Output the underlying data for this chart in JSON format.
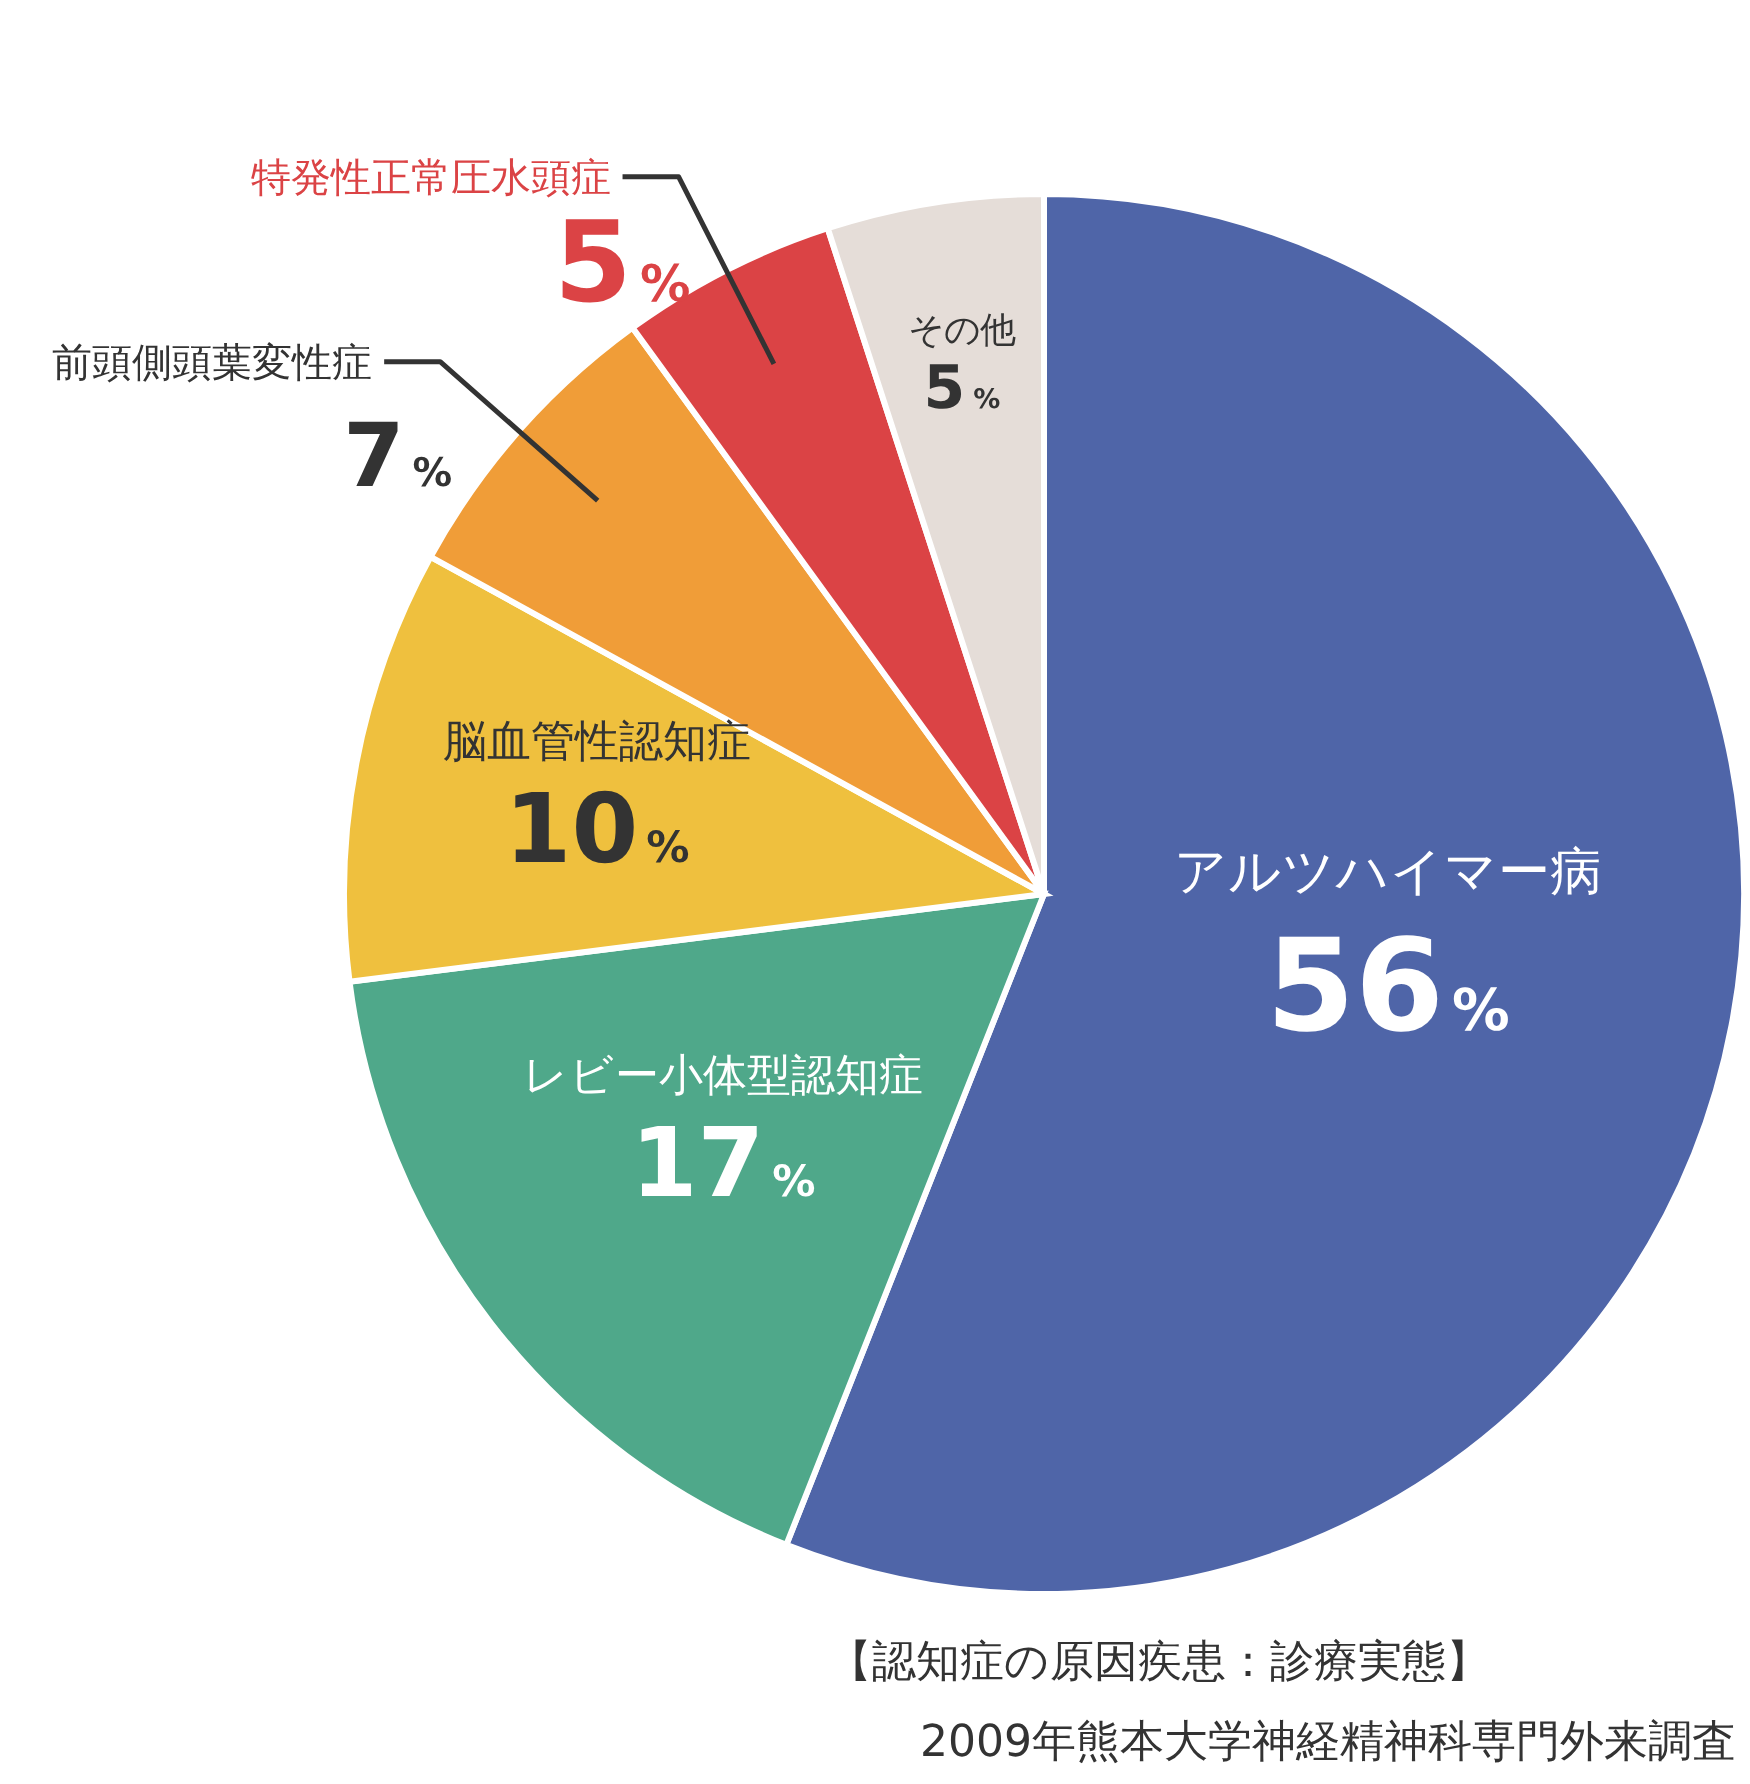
{
  "chart_data": {
    "type": "pie",
    "categories": [
      "アルツハイマー病",
      "レビー小体型認知症",
      "脳血管性認知症",
      "前頭側頭葉変性症",
      "特発性正常圧水頭症",
      "その他"
    ],
    "values": [
      56,
      17,
      10,
      7,
      5,
      5
    ],
    "colors": [
      "#4f65a8",
      "#4fa88a",
      "#efc03e",
      "#f09d38",
      "#db4345",
      "#e5ddd8"
    ],
    "value_labels": [
      "56%",
      "17%",
      "10%",
      "7%",
      "5%",
      "5%"
    ],
    "annotations": [
      "【認知症の原因疾患：診療実態】",
      "2009年熊本大学神経精神科専門外来調査"
    ]
  }
}
